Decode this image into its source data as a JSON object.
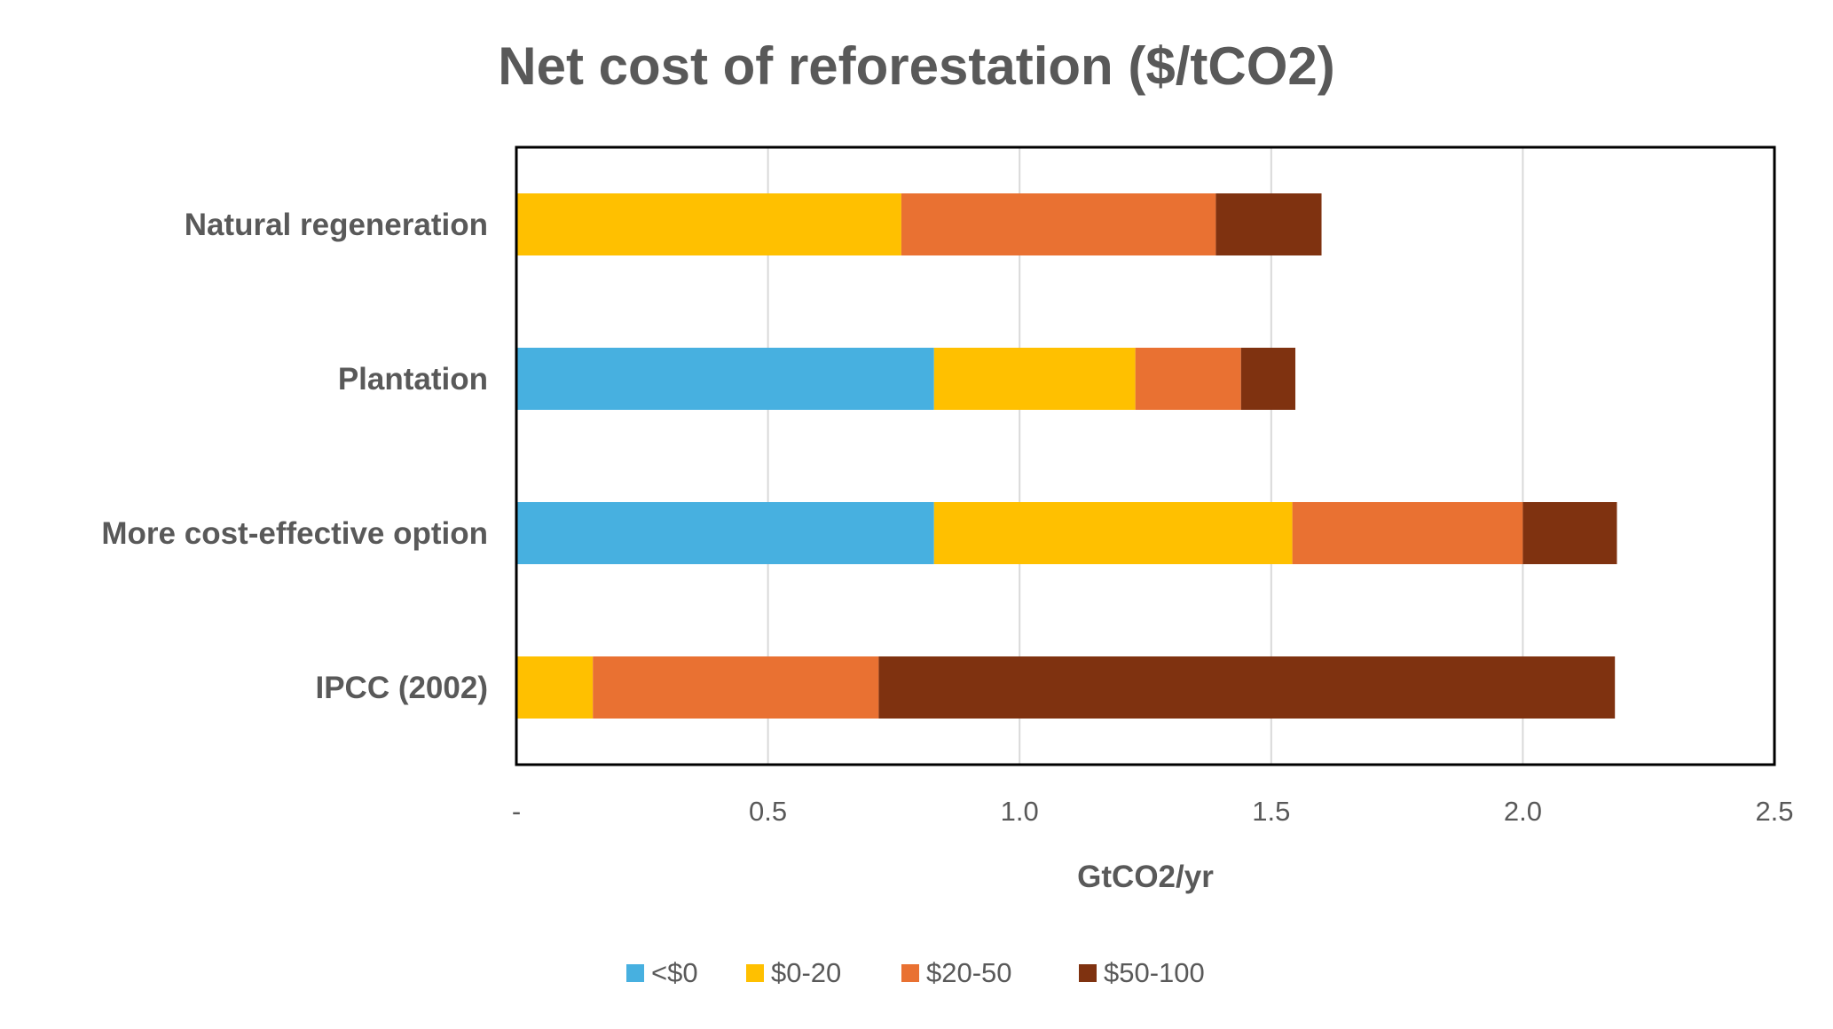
{
  "chart_data": {
    "type": "bar",
    "orientation": "horizontal",
    "stacked": true,
    "title": "Net cost of reforestation ($/tCO2)",
    "xlabel": "GtCO2/yr",
    "ylabel": "",
    "xlim": [
      0,
      2.5
    ],
    "xticks": [
      0,
      0.5,
      1.0,
      1.5,
      2.0,
      2.5
    ],
    "xtick_labels": [
      "-",
      "0.5",
      "1.0",
      "1.5",
      "2.0",
      "2.5"
    ],
    "grid": "vertical",
    "legend_position": "bottom",
    "categories": [
      "Natural regeneration",
      "Plantation",
      "More cost-effective option",
      "IPCC (2002)"
    ],
    "series": [
      {
        "name": "<$0",
        "color": "#47B0E0",
        "values": [
          0,
          0.83,
          0.83,
          0
        ]
      },
      {
        "name": "$0-20",
        "color": "#FFC000",
        "values": [
          0.765,
          0.4,
          0.712,
          0.152
        ]
      },
      {
        "name": "$20-50",
        "color": "#E97132",
        "values": [
          0.625,
          0.21,
          0.458,
          0.568
        ]
      },
      {
        "name": "$50-100",
        "color": "#7F3210",
        "values": [
          0.21,
          0.108,
          0.187,
          1.463
        ]
      }
    ]
  }
}
